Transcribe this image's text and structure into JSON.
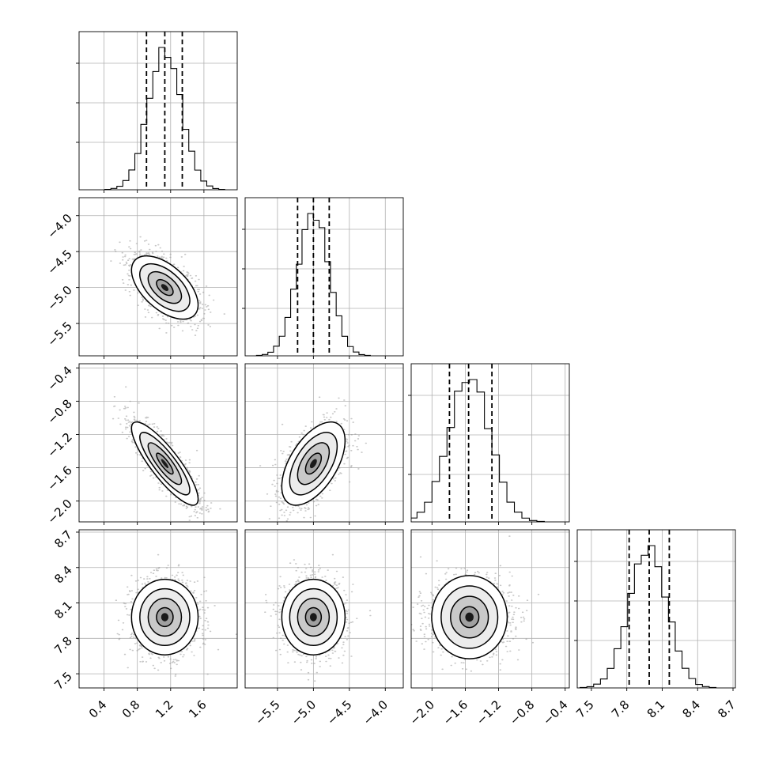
{
  "chart_data": {
    "type": "corner",
    "title": "",
    "n_params": 4,
    "params": [
      {
        "label": "",
        "range": [
          0.1,
          2.0
        ],
        "ticks": [
          0.4,
          0.8,
          1.2,
          1.6
        ],
        "tick_labels": [
          "0.4",
          "0.8",
          "1.2",
          "1.6"
        ],
        "quantiles": [
          0.91,
          1.13,
          1.34
        ],
        "mean": 1.13,
        "sd": 0.2
      },
      {
        "label": "",
        "range": [
          -5.95,
          -3.75
        ],
        "ticks": [
          -5.5,
          -5.0,
          -4.5,
          -4.0
        ],
        "tick_labels": [
          "−5.5",
          "−5.0",
          "−4.5",
          "−4.0"
        ],
        "quantiles": [
          -5.22,
          -5.0,
          -4.78
        ],
        "mean": -5.0,
        "sd": 0.22
      },
      {
        "label": "",
        "range": [
          -2.25,
          -0.35
        ],
        "ticks": [
          -2.0,
          -1.6,
          -1.2,
          -0.8,
          -0.4
        ],
        "tick_labels": [
          "−2.0",
          "−1.6",
          "−1.2",
          "−0.8",
          "−0.4"
        ],
        "quantiles": [
          -1.79,
          -1.56,
          -1.28
        ],
        "mean": -1.55,
        "sd": 0.25
      },
      {
        "label": "",
        "range": [
          7.38,
          8.72
        ],
        "ticks": [
          7.5,
          7.8,
          8.1,
          8.4,
          8.7
        ],
        "tick_labels": [
          "7.5",
          "7.8",
          "8.1",
          "8.4",
          "8.7"
        ],
        "quantiles": [
          7.82,
          7.99,
          8.16
        ],
        "mean": 7.98,
        "sd": 0.16
      }
    ],
    "correlations": {
      "1,0": -0.55,
      "2,0": -0.85,
      "2,1": 0.55,
      "3,0": 0.0,
      "3,1": 0.0,
      "3,2": 0.0
    },
    "contour_levels_sigma": [
      0.5,
      1.0,
      1.5,
      2.0
    ],
    "hist_bins": 20,
    "grid": true,
    "truth_lines": true,
    "colors": {
      "line": "#000000",
      "points": "#9a9a9a",
      "grid": "#b0b0b0"
    }
  }
}
